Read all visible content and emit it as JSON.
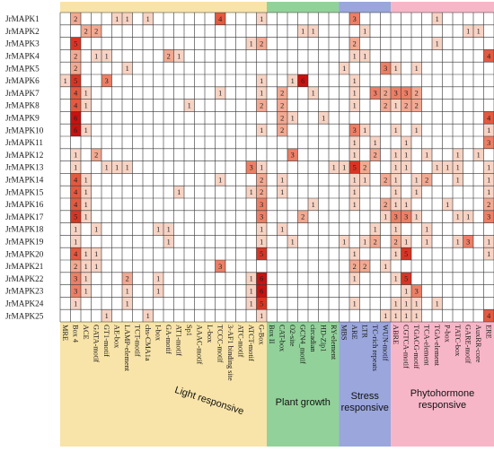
{
  "chart_data": {
    "type": "heatmap",
    "rows": [
      "JrMAPK1",
      "JrMAPK2",
      "JrMAPK3",
      "JrMAPK4",
      "JrMAPK5",
      "JrMAPK6",
      "JrMAPK7",
      "JrMAPK8",
      "JrMAPK9",
      "JrMAPK10",
      "JrMAPK11",
      "JrMAPK12",
      "JrMAPK13",
      "JrMAPK14",
      "JrMAPK15",
      "JrMAPK16",
      "JrMAPK17",
      "JrMAPK18",
      "JrMAPK19",
      "JrMAPK20",
      "JrMAPK21",
      "JrMAPK22",
      "JrMAPK23",
      "JrMAPK24",
      "JrMAPK25"
    ],
    "columns": [
      "MRE",
      "Box 4",
      "ACE",
      "GATA-motif",
      "GT1-motif",
      "AE-box",
      "LAMP-element",
      "TCT-motif",
      "chs-CMA1a",
      "I-box",
      "GA-motif",
      "AT1-motif",
      "Sp1",
      "AAAC-motif",
      "L-box",
      "TCCC-motif",
      "3-AF1 binding site",
      "ATC-motif",
      "ATCT-motif",
      "G-Box",
      "Box II",
      "CAT-box",
      "O2-site",
      "GCN4_motif",
      "circadian",
      "HD-Zip1",
      "RY-element",
      "MBS",
      "ARE",
      "LTR",
      "TC-rich repeats",
      "WUN-motif",
      "ABRE",
      "CGTCA-motif",
      "TGACG-motif",
      "TCA-element",
      "TGA-element",
      "P-box",
      "TATC-box",
      "GARE-motif",
      "AuxRR-core",
      "ERE"
    ],
    "groups": [
      {
        "name": "Light responsive",
        "start": 0,
        "end": 19,
        "color": "#f8e4a8"
      },
      {
        "name": "Plant growth",
        "start": 20,
        "end": 26,
        "color": "#92d29a"
      },
      {
        "name": "Stress responsive",
        "start": 27,
        "end": 31,
        "color": "#9aa6dc"
      },
      {
        "name": "Phytohormone responsive",
        "start": 32,
        "end": 41,
        "color": "#f7b6c8"
      }
    ],
    "values": [
      [
        0,
        2,
        0,
        0,
        0,
        1,
        1,
        0,
        1,
        0,
        0,
        0,
        0,
        0,
        0,
        4,
        0,
        0,
        0,
        1,
        0,
        0,
        0,
        0,
        0,
        0,
        0,
        0,
        3,
        0,
        0,
        0,
        0,
        0,
        0,
        0,
        1,
        0,
        0,
        0,
        0,
        0
      ],
      [
        0,
        0,
        2,
        2,
        0,
        0,
        0,
        0,
        0,
        0,
        0,
        0,
        0,
        0,
        0,
        0,
        0,
        0,
        0,
        0,
        0,
        0,
        0,
        1,
        1,
        0,
        0,
        0,
        0,
        1,
        0,
        0,
        0,
        0,
        0,
        0,
        0,
        0,
        0,
        1,
        1,
        0
      ],
      [
        0,
        5,
        0,
        0,
        0,
        0,
        0,
        0,
        0,
        0,
        0,
        0,
        0,
        0,
        0,
        0,
        0,
        0,
        1,
        2,
        0,
        0,
        0,
        0,
        0,
        0,
        0,
        0,
        2,
        0,
        0,
        0,
        0,
        0,
        0,
        0,
        1,
        0,
        0,
        0,
        0,
        0
      ],
      [
        0,
        2,
        0,
        1,
        1,
        0,
        0,
        0,
        0,
        0,
        2,
        1,
        0,
        0,
        0,
        0,
        0,
        0,
        0,
        0,
        0,
        0,
        0,
        0,
        0,
        0,
        0,
        0,
        1,
        1,
        0,
        0,
        0,
        0,
        0,
        0,
        0,
        0,
        0,
        0,
        0,
        4
      ],
      [
        0,
        2,
        0,
        0,
        0,
        0,
        1,
        0,
        0,
        0,
        0,
        0,
        0,
        0,
        0,
        0,
        0,
        0,
        0,
        0,
        0,
        0,
        0,
        0,
        0,
        0,
        0,
        1,
        0,
        0,
        0,
        3,
        1,
        0,
        1,
        0,
        0,
        0,
        0,
        0,
        0,
        0
      ],
      [
        1,
        5,
        0,
        0,
        3,
        0,
        0,
        0,
        0,
        0,
        0,
        0,
        0,
        0,
        0,
        0,
        0,
        0,
        0,
        1,
        0,
        0,
        1,
        6,
        0,
        0,
        0,
        0,
        1,
        0,
        0,
        0,
        0,
        0,
        0,
        0,
        0,
        0,
        0,
        0,
        0,
        0
      ],
      [
        0,
        4,
        1,
        0,
        0,
        0,
        0,
        0,
        0,
        0,
        0,
        0,
        0,
        0,
        0,
        1,
        0,
        0,
        0,
        1,
        0,
        2,
        0,
        0,
        1,
        0,
        0,
        0,
        1,
        0,
        3,
        2,
        3,
        3,
        2,
        0,
        0,
        0,
        0,
        0,
        0,
        0
      ],
      [
        0,
        4,
        1,
        0,
        0,
        0,
        0,
        0,
        0,
        0,
        0,
        0,
        1,
        0,
        0,
        0,
        0,
        0,
        0,
        2,
        0,
        2,
        0,
        0,
        0,
        0,
        0,
        0,
        1,
        0,
        0,
        2,
        1,
        2,
        2,
        0,
        0,
        0,
        0,
        0,
        0,
        0
      ],
      [
        0,
        6,
        0,
        0,
        0,
        0,
        0,
        0,
        0,
        0,
        0,
        0,
        0,
        0,
        0,
        0,
        0,
        0,
        0,
        0,
        0,
        2,
        1,
        0,
        0,
        1,
        0,
        0,
        0,
        0,
        0,
        0,
        0,
        0,
        0,
        0,
        0,
        0,
        0,
        0,
        0,
        4
      ],
      [
        0,
        6,
        1,
        0,
        0,
        0,
        0,
        0,
        0,
        0,
        0,
        0,
        0,
        0,
        0,
        0,
        0,
        0,
        0,
        1,
        0,
        2,
        0,
        0,
        0,
        0,
        0,
        0,
        3,
        1,
        0,
        0,
        1,
        0,
        1,
        0,
        0,
        0,
        0,
        0,
        0,
        1
      ],
      [
        0,
        0,
        0,
        0,
        0,
        0,
        0,
        0,
        0,
        0,
        0,
        0,
        0,
        0,
        0,
        0,
        0,
        0,
        0,
        0,
        0,
        0,
        0,
        0,
        0,
        0,
        0,
        0,
        1,
        0,
        1,
        0,
        0,
        1,
        0,
        0,
        0,
        0,
        0,
        0,
        0,
        3
      ],
      [
        0,
        1,
        0,
        2,
        0,
        0,
        0,
        0,
        0,
        0,
        0,
        0,
        0,
        0,
        0,
        0,
        0,
        0,
        0,
        0,
        0,
        0,
        3,
        0,
        0,
        0,
        0,
        0,
        1,
        0,
        2,
        0,
        1,
        1,
        0,
        1,
        0,
        0,
        1,
        0,
        1,
        0
      ],
      [
        0,
        1,
        0,
        0,
        1,
        1,
        1,
        0,
        0,
        0,
        0,
        0,
        0,
        0,
        0,
        0,
        0,
        0,
        3,
        1,
        0,
        0,
        0,
        0,
        0,
        0,
        1,
        1,
        5,
        2,
        0,
        0,
        1,
        1,
        0,
        0,
        1,
        1,
        1,
        0,
        0,
        1
      ],
      [
        0,
        4,
        1,
        0,
        0,
        0,
        0,
        0,
        0,
        0,
        0,
        0,
        0,
        0,
        0,
        1,
        0,
        0,
        0,
        2,
        0,
        1,
        0,
        0,
        0,
        0,
        0,
        0,
        1,
        1,
        0,
        2,
        1,
        0,
        1,
        2,
        0,
        0,
        1,
        0,
        0,
        1
      ],
      [
        0,
        4,
        1,
        0,
        0,
        0,
        0,
        0,
        0,
        0,
        0,
        1,
        0,
        0,
        0,
        0,
        0,
        0,
        1,
        2,
        0,
        1,
        0,
        0,
        0,
        0,
        0,
        0,
        1,
        0,
        0,
        0,
        1,
        0,
        1,
        0,
        0,
        0,
        0,
        0,
        0,
        1
      ],
      [
        0,
        4,
        1,
        0,
        0,
        0,
        0,
        0,
        0,
        0,
        0,
        0,
        0,
        0,
        0,
        0,
        0,
        0,
        0,
        3,
        0,
        0,
        0,
        0,
        1,
        0,
        0,
        0,
        1,
        0,
        0,
        2,
        1,
        1,
        0,
        0,
        0,
        1,
        0,
        0,
        0,
        2
      ],
      [
        0,
        5,
        1,
        0,
        0,
        0,
        0,
        0,
        0,
        0,
        0,
        0,
        0,
        0,
        0,
        0,
        0,
        0,
        0,
        3,
        0,
        0,
        0,
        2,
        0,
        0,
        0,
        0,
        0,
        0,
        0,
        1,
        3,
        3,
        1,
        0,
        0,
        0,
        1,
        1,
        0,
        3
      ],
      [
        0,
        1,
        0,
        1,
        0,
        0,
        0,
        0,
        0,
        1,
        1,
        0,
        0,
        0,
        0,
        0,
        0,
        0,
        0,
        1,
        0,
        1,
        0,
        0,
        0,
        0,
        0,
        0,
        0,
        0,
        1,
        0,
        1,
        0,
        0,
        1,
        0,
        0,
        0,
        0,
        0,
        0
      ],
      [
        0,
        1,
        0,
        0,
        0,
        0,
        0,
        0,
        0,
        0,
        1,
        0,
        0,
        0,
        0,
        0,
        0,
        0,
        0,
        1,
        0,
        0,
        1,
        0,
        0,
        0,
        0,
        1,
        0,
        1,
        2,
        0,
        2,
        1,
        0,
        1,
        0,
        0,
        1,
        3,
        0,
        1
      ],
      [
        0,
        4,
        1,
        1,
        0,
        0,
        0,
        0,
        0,
        0,
        0,
        0,
        0,
        0,
        0,
        0,
        0,
        0,
        0,
        5,
        0,
        0,
        0,
        0,
        0,
        0,
        0,
        0,
        1,
        0,
        0,
        0,
        1,
        5,
        0,
        0,
        0,
        0,
        0,
        0,
        0,
        1
      ],
      [
        0,
        2,
        1,
        1,
        0,
        0,
        0,
        0,
        0,
        0,
        0,
        0,
        0,
        0,
        0,
        3,
        0,
        0,
        0,
        0,
        0,
        0,
        0,
        0,
        0,
        0,
        0,
        0,
        2,
        2,
        0,
        1,
        0,
        0,
        0,
        0,
        0,
        0,
        0,
        0,
        0,
        0
      ],
      [
        0,
        3,
        1,
        0,
        0,
        0,
        2,
        0,
        0,
        1,
        0,
        0,
        0,
        0,
        0,
        0,
        0,
        0,
        1,
        6,
        0,
        0,
        0,
        0,
        0,
        0,
        0,
        0,
        1,
        0,
        0,
        0,
        1,
        5,
        0,
        0,
        0,
        0,
        0,
        0,
        0,
        0
      ],
      [
        0,
        3,
        1,
        0,
        0,
        0,
        1,
        0,
        0,
        1,
        0,
        0,
        0,
        0,
        0,
        0,
        0,
        0,
        1,
        6,
        0,
        0,
        0,
        0,
        0,
        0,
        0,
        0,
        0,
        0,
        0,
        0,
        0,
        1,
        3,
        0,
        0,
        0,
        0,
        0,
        0,
        0
      ],
      [
        0,
        1,
        0,
        0,
        0,
        0,
        1,
        0,
        0,
        0,
        0,
        0,
        0,
        0,
        0,
        0,
        0,
        0,
        1,
        5,
        0,
        0,
        0,
        0,
        0,
        0,
        0,
        0,
        1,
        0,
        0,
        0,
        1,
        1,
        1,
        0,
        1,
        0,
        0,
        0,
        0,
        0
      ],
      [
        0,
        0,
        0,
        0,
        1,
        0,
        0,
        0,
        1,
        0,
        0,
        0,
        0,
        0,
        0,
        0,
        0,
        0,
        0,
        1,
        0,
        0,
        0,
        0,
        0,
        0,
        0,
        0,
        0,
        0,
        0,
        1,
        1,
        1,
        1,
        0,
        0,
        0,
        0,
        0,
        0,
        4
      ]
    ],
    "color_scale": [
      "#ffffff",
      "#f7d3c4",
      "#f2a992",
      "#ec7f66",
      "#e35a40",
      "#d83525",
      "#c9110f"
    ]
  }
}
